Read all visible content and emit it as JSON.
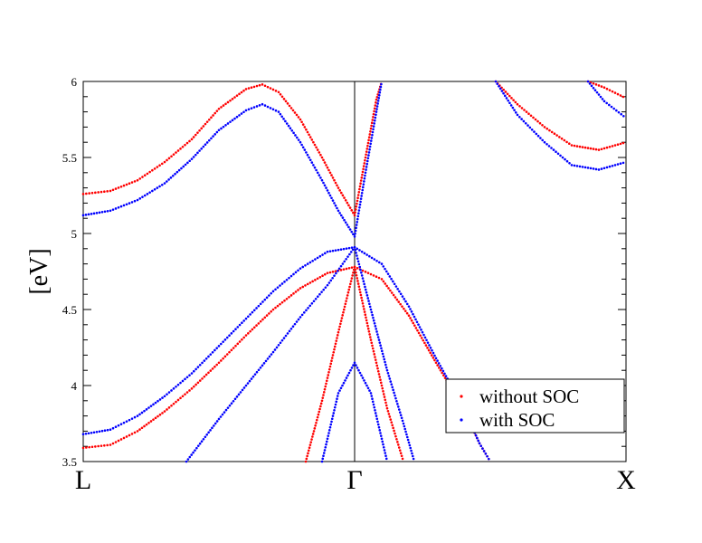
{
  "chart_data": {
    "type": "scatter",
    "ylabel": "[eV]",
    "ylim": [
      3.5,
      6
    ],
    "xlim": [
      0,
      1
    ],
    "y_ticks": [
      3.5,
      4,
      4.5,
      5,
      5.5,
      6
    ],
    "y_tick_labels": [
      "3.5",
      "4",
      "4.5",
      "5",
      "5.5",
      "6"
    ],
    "k_points": [
      {
        "label": "L",
        "x": 0
      },
      {
        "label": "Γ",
        "x": 0.5
      },
      {
        "label": "X",
        "x": 1
      }
    ],
    "grid": false,
    "legend_position": "bottom-right",
    "series": [
      {
        "name": "without SOC",
        "color": "#ff0000",
        "bands": [
          [
            [
              0,
              5.26
            ],
            [
              0.05,
              5.28
            ],
            [
              0.1,
              5.35
            ],
            [
              0.15,
              5.47
            ],
            [
              0.2,
              5.62
            ],
            [
              0.25,
              5.82
            ],
            [
              0.3,
              5.95
            ],
            [
              0.33,
              5.98
            ],
            [
              0.36,
              5.93
            ],
            [
              0.4,
              5.75
            ],
            [
              0.44,
              5.5
            ],
            [
              0.47,
              5.3
            ],
            [
              0.5,
              5.12
            ]
          ],
          [
            [
              0.5,
              5.12
            ],
            [
              0.52,
              5.5
            ],
            [
              0.54,
              5.88
            ],
            [
              0.55,
              6.0
            ]
          ],
          [
            [
              0,
              3.59
            ],
            [
              0.05,
              3.61
            ],
            [
              0.1,
              3.7
            ],
            [
              0.15,
              3.83
            ],
            [
              0.2,
              3.98
            ],
            [
              0.25,
              4.15
            ],
            [
              0.3,
              4.33
            ],
            [
              0.35,
              4.5
            ],
            [
              0.4,
              4.64
            ],
            [
              0.45,
              4.74
            ],
            [
              0.5,
              4.78
            ],
            [
              0.55,
              4.7
            ],
            [
              0.6,
              4.46
            ],
            [
              0.65,
              4.15
            ],
            [
              0.7,
              3.85
            ],
            [
              0.73,
              3.62
            ],
            [
              0.75,
              3.5
            ]
          ],
          [
            [
              0.41,
              3.5
            ],
            [
              0.44,
              3.9
            ],
            [
              0.47,
              4.35
            ],
            [
              0.5,
              4.78
            ]
          ],
          [
            [
              0.5,
              4.78
            ],
            [
              0.53,
              4.3
            ],
            [
              0.56,
              3.85
            ],
            [
              0.59,
              3.5
            ]
          ],
          [
            [
              0.76,
              6.0
            ],
            [
              0.8,
              5.85
            ],
            [
              0.85,
              5.7
            ],
            [
              0.9,
              5.58
            ],
            [
              0.95,
              5.55
            ],
            [
              1.0,
              5.6
            ]
          ],
          [
            [
              0.93,
              6.0
            ],
            [
              0.96,
              5.96
            ],
            [
              1.0,
              5.89
            ]
          ]
        ]
      },
      {
        "name": "with SOC",
        "color": "#0000ff",
        "bands": [
          [
            [
              0,
              5.12
            ],
            [
              0.05,
              5.15
            ],
            [
              0.1,
              5.22
            ],
            [
              0.15,
              5.33
            ],
            [
              0.2,
              5.49
            ],
            [
              0.25,
              5.68
            ],
            [
              0.3,
              5.81
            ],
            [
              0.33,
              5.85
            ],
            [
              0.36,
              5.8
            ],
            [
              0.4,
              5.6
            ],
            [
              0.44,
              5.35
            ],
            [
              0.47,
              5.15
            ],
            [
              0.5,
              4.98
            ]
          ],
          [
            [
              0.5,
              4.98
            ],
            [
              0.52,
              5.4
            ],
            [
              0.54,
              5.8
            ],
            [
              0.55,
              6.0
            ]
          ],
          [
            [
              0,
              3.68
            ],
            [
              0.05,
              3.71
            ],
            [
              0.1,
              3.8
            ],
            [
              0.15,
              3.93
            ],
            [
              0.2,
              4.08
            ],
            [
              0.25,
              4.26
            ],
            [
              0.3,
              4.44
            ],
            [
              0.35,
              4.62
            ],
            [
              0.4,
              4.77
            ],
            [
              0.45,
              4.88
            ],
            [
              0.5,
              4.91
            ],
            [
              0.55,
              4.8
            ],
            [
              0.6,
              4.52
            ],
            [
              0.65,
              4.18
            ],
            [
              0.7,
              3.86
            ],
            [
              0.73,
              3.62
            ],
            [
              0.75,
              3.5
            ]
          ],
          [
            [
              0.19,
              3.5
            ],
            [
              0.25,
              3.78
            ],
            [
              0.3,
              4.0
            ],
            [
              0.35,
              4.22
            ],
            [
              0.4,
              4.45
            ],
            [
              0.45,
              4.66
            ],
            [
              0.5,
              4.91
            ]
          ],
          [
            [
              0.5,
              4.91
            ],
            [
              0.53,
              4.5
            ],
            [
              0.56,
              4.1
            ],
            [
              0.59,
              3.75
            ],
            [
              0.61,
              3.5
            ]
          ],
          [
            [
              0.44,
              3.5
            ],
            [
              0.47,
              3.95
            ],
            [
              0.5,
              4.15
            ],
            [
              0.53,
              3.95
            ],
            [
              0.56,
              3.5
            ]
          ],
          [
            [
              0.76,
              6.0
            ],
            [
              0.8,
              5.78
            ],
            [
              0.85,
              5.6
            ],
            [
              0.9,
              5.45
            ],
            [
              0.95,
              5.42
            ],
            [
              1.0,
              5.47
            ]
          ],
          [
            [
              0.93,
              6.0
            ],
            [
              0.96,
              5.87
            ],
            [
              1.0,
              5.76
            ]
          ]
        ]
      }
    ]
  }
}
